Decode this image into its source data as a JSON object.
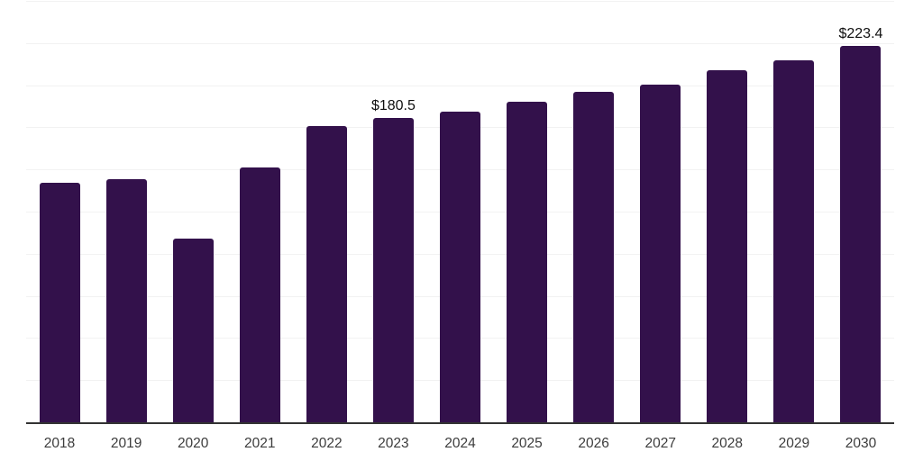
{
  "chart_data": {
    "type": "bar",
    "title": "",
    "categories": [
      "2018",
      "2019",
      "2020",
      "2021",
      "2022",
      "2023",
      "2024",
      "2025",
      "2026",
      "2027",
      "2028",
      "2029",
      "2030"
    ],
    "values": [
      142,
      144.5,
      109,
      151,
      176,
      180.5,
      184.5,
      190,
      196,
      200.5,
      209,
      215,
      223.4
    ],
    "data_labels": [
      "",
      "",
      "",
      "",
      "",
      "$180.5",
      "",
      "",
      "",
      "",
      "",
      "",
      "$223.4"
    ],
    "ylim": [
      0,
      250
    ],
    "gridline_step": 25,
    "grid": true,
    "legend": false,
    "value_prefix": "$",
    "colors": {
      "bar": "#33114B",
      "gridline": "#f2f2f2",
      "axis_line": "#333333",
      "tick_label": "#3c3c3c",
      "data_label": "#0f0f0f",
      "background": "#ffffff"
    }
  }
}
